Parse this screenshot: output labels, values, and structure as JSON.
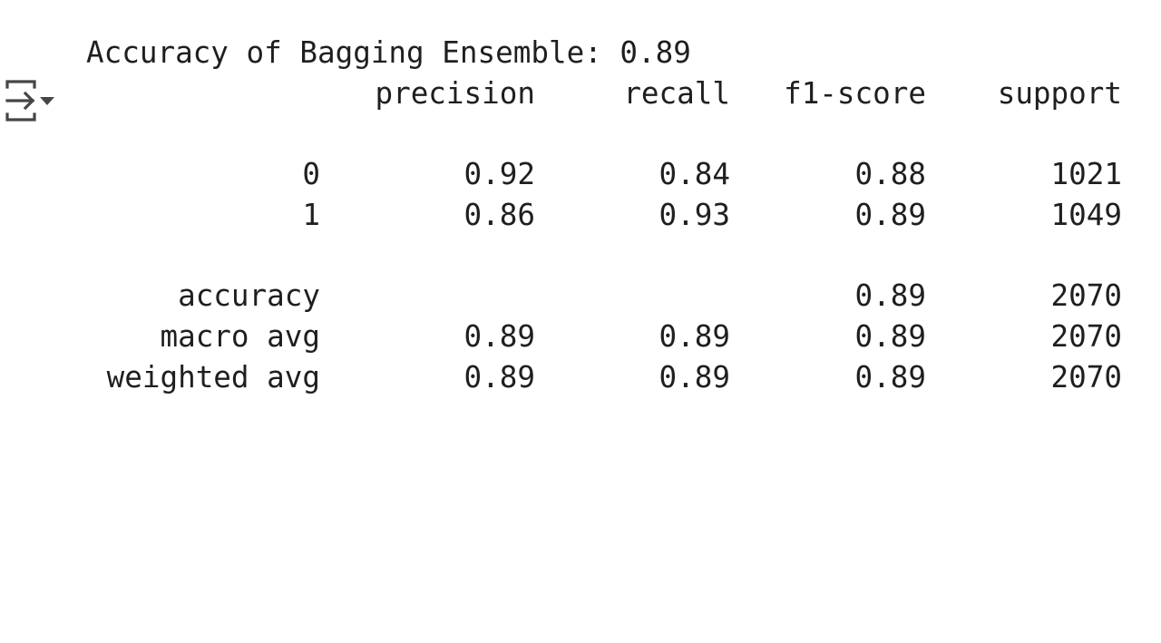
{
  "toggle": {
    "icon": "output-toggle-icon"
  },
  "output": {
    "accuracy_line": "Accuracy of Bagging Ensemble: 0.89",
    "header": {
      "precision": "precision",
      "recall": "recall",
      "f1": "f1-score",
      "support": "support"
    },
    "rows": [
      {
        "label": "0",
        "precision": "0.92",
        "recall": "0.84",
        "f1": "0.88",
        "support": "1021"
      },
      {
        "label": "1",
        "precision": "0.86",
        "recall": "0.93",
        "f1": "0.89",
        "support": "1049"
      }
    ],
    "accuracy_row": {
      "label": "accuracy",
      "f1": "0.89",
      "support": "2070"
    },
    "macro_row": {
      "label": "macro avg",
      "precision": "0.89",
      "recall": "0.89",
      "f1": "0.89",
      "support": "2070"
    },
    "weighted_row": {
      "label": "weighted avg",
      "precision": "0.89",
      "recall": "0.89",
      "f1": "0.89",
      "support": "2070"
    }
  }
}
